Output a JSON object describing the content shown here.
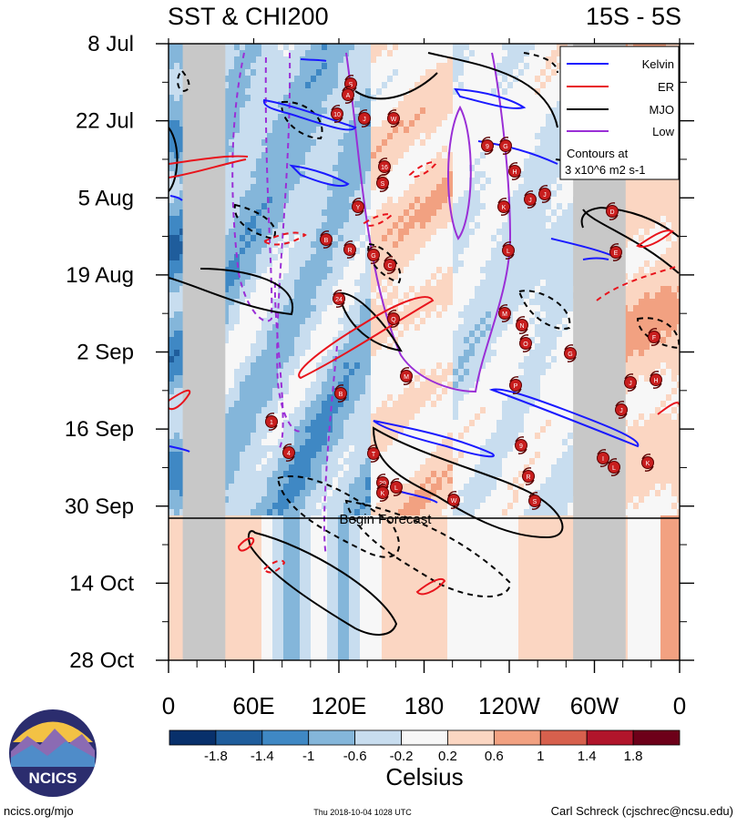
{
  "title_left": "SST & CHI200",
  "title_right": "15S - 5S",
  "begin_forecast": "Begin Forecast",
  "colorbar_unit": "Celsius",
  "footer_left": "ncics.org/mjo",
  "footer_center": "Thu 2018-10-04 1028 UTC",
  "footer_right": "Carl Schreck (cjschrec@ncsu.edu)",
  "logo_text": "NCICS",
  "legend": {
    "items": [
      {
        "label": "Kelvin",
        "color": "#1a1aff"
      },
      {
        "label": "ER",
        "color": "#e8141c"
      },
      {
        "label": "MJO",
        "color": "#000000"
      },
      {
        "label": "Low",
        "color": "#9a2fd6"
      }
    ],
    "note_line1": "Contours at",
    "note_line2": "3 x10^6 m2 s-1"
  },
  "chart_data": {
    "type": "heatmap",
    "title": "SST & CHI200",
    "region": "15S - 5S",
    "xlabel": "",
    "ylabel": "",
    "x_ticks": [
      "0",
      "60E",
      "120E",
      "180",
      "120W",
      "60W",
      "0"
    ],
    "x_range_deg_east": [
      0,
      360
    ],
    "y_ticks": [
      "8 Jul",
      "22 Jul",
      "5 Aug",
      "19 Aug",
      "2 Sep",
      "16 Sep",
      "30 Sep",
      "14 Oct",
      "28 Oct"
    ],
    "time_range": [
      "8 Jul",
      "28 Oct"
    ],
    "forecast_start": "4 Oct",
    "colorbar": {
      "unit": "Celsius",
      "tick_labels": [
        "-1.8",
        "-1.4",
        "-1",
        "-0.6",
        "-0.2",
        "0.2",
        "0.6",
        "1",
        "1.4",
        "1.8"
      ],
      "colors": [
        "#08306b",
        "#1f5d9c",
        "#3f88c4",
        "#84b6da",
        "#c8ddef",
        "#f7f7f7",
        "#fbd6c2",
        "#f2a181",
        "#d7604d",
        "#b1152b",
        "#6d0019"
      ]
    },
    "land_masked_longitudes": [
      [
        10,
        40
      ],
      [
        285,
        322
      ]
    ],
    "contour_series": [
      {
        "name": "Kelvin",
        "color": "#1a1aff",
        "style": "solid"
      },
      {
        "name": "ER",
        "color": "#e8141c",
        "style": "solid/dashed"
      },
      {
        "name": "MJO",
        "color": "#000000",
        "style": "solid/dashed"
      },
      {
        "name": "Low",
        "color": "#9a2fd6",
        "style": "solid/dashed"
      }
    ],
    "storm_markers": [
      "S",
      "A",
      "10",
      "J",
      "W",
      "9",
      "G",
      "16",
      "S",
      "H",
      "Y",
      "J",
      "J",
      "K",
      "D",
      "B",
      "R",
      "G",
      "C",
      "L",
      "E",
      "24",
      "Q",
      "M",
      "N",
      "G",
      "O",
      "F",
      "B",
      "M",
      "P",
      "J",
      "H",
      "J",
      "1",
      "4",
      "T",
      "9",
      "I",
      "L",
      "K",
      "29",
      "L",
      "K",
      "R",
      "W",
      "S"
    ]
  }
}
